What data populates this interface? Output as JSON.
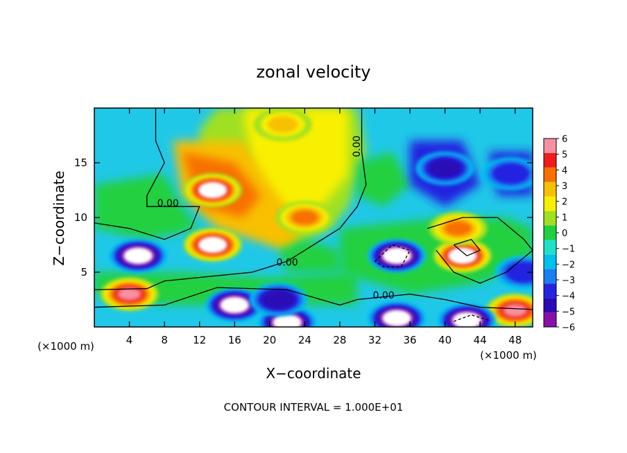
{
  "chart_data": {
    "type": "heatmap",
    "title": "zonal velocity",
    "xlabel": "X−coordinate",
    "ylabel": "Z−coordinate",
    "x_unit_left": "(×1000 m)",
    "x_unit_right": "(×1000 m)",
    "footer": "CONTOUR INTERVAL = 1.000E+01",
    "xlim": [
      0,
      50
    ],
    "ylim": [
      0,
      20
    ],
    "x_ticks": [
      4,
      8,
      12,
      16,
      20,
      24,
      28,
      32,
      36,
      40,
      44,
      48
    ],
    "y_ticks": [
      5,
      10,
      15
    ],
    "x_tick_labels": [
      "4",
      "8",
      "12",
      "16",
      "20",
      "24",
      "28",
      "32",
      "36",
      "40",
      "44",
      "48"
    ],
    "y_tick_labels": [
      "5",
      "10",
      "15"
    ],
    "colorbar": {
      "min": -6,
      "max": 6,
      "tick_labels": [
        "6",
        "5",
        "4",
        "3",
        "2",
        "1",
        "0",
        "−1",
        "−2",
        "−3",
        "−4",
        "−5",
        "−6"
      ],
      "colors": [
        "#8a0fa8",
        "#2a0ab5",
        "#2424e0",
        "#1a7ff0",
        "#00c0f0",
        "#20e0c8",
        "#20d040",
        "#a0e020",
        "#f8f000",
        "#f8c000",
        "#f87000",
        "#f01c1c",
        "#f890a0"
      ]
    },
    "contour_labels": [
      {
        "text": "0.00",
        "x": 8.4,
        "z": 11.0
      },
      {
        "text": "0.00",
        "x": 22.0,
        "z": 5.6
      },
      {
        "text": "0.00",
        "x": 33.0,
        "z": 2.6
      },
      {
        "text": "0.00",
        "x": 30.3,
        "z": 16.5
      }
    ],
    "features": [
      {
        "kind": "max",
        "x": 13.5,
        "z": 12.5,
        "value": 6.5
      },
      {
        "kind": "max",
        "x": 13.5,
        "z": 7.5,
        "value": 6.5
      },
      {
        "kind": "max",
        "x": 42.0,
        "z": 6.5,
        "value": 6.5
      },
      {
        "kind": "max",
        "x": 4.0,
        "z": 3.0,
        "value": 6.0
      },
      {
        "kind": "max",
        "x": 48.0,
        "z": 1.5,
        "value": 6.0
      },
      {
        "kind": "min",
        "x": 5.0,
        "z": 6.5,
        "value": -6.5
      },
      {
        "kind": "min",
        "x": 34.5,
        "z": 6.5,
        "value": -6.5
      },
      {
        "kind": "min",
        "x": 16.0,
        "z": 2.0,
        "value": -6.5
      },
      {
        "kind": "min",
        "x": 34.5,
        "z": 0.8,
        "value": -6.5
      },
      {
        "kind": "min",
        "x": 42.5,
        "z": 0.6,
        "value": -6.5
      },
      {
        "kind": "min",
        "x": 22.0,
        "z": 0.4,
        "value": -6.5
      },
      {
        "kind": "min",
        "x": 21.0,
        "z": 2.5,
        "value": -5.0
      },
      {
        "kind": "min",
        "x": 40.0,
        "z": 14.5,
        "value": -4.5
      },
      {
        "kind": "min",
        "x": 47.5,
        "z": 14.0,
        "value": -4.0
      },
      {
        "kind": "min",
        "x": 49.0,
        "z": 5.0,
        "value": -4.0
      },
      {
        "kind": "max",
        "x": 21.5,
        "z": 18.5,
        "value": 3.0
      },
      {
        "kind": "max",
        "x": 24.0,
        "z": 10.0,
        "value": 4.0
      },
      {
        "kind": "max",
        "x": 41.5,
        "z": 9.0,
        "value": 4.0
      }
    ]
  }
}
